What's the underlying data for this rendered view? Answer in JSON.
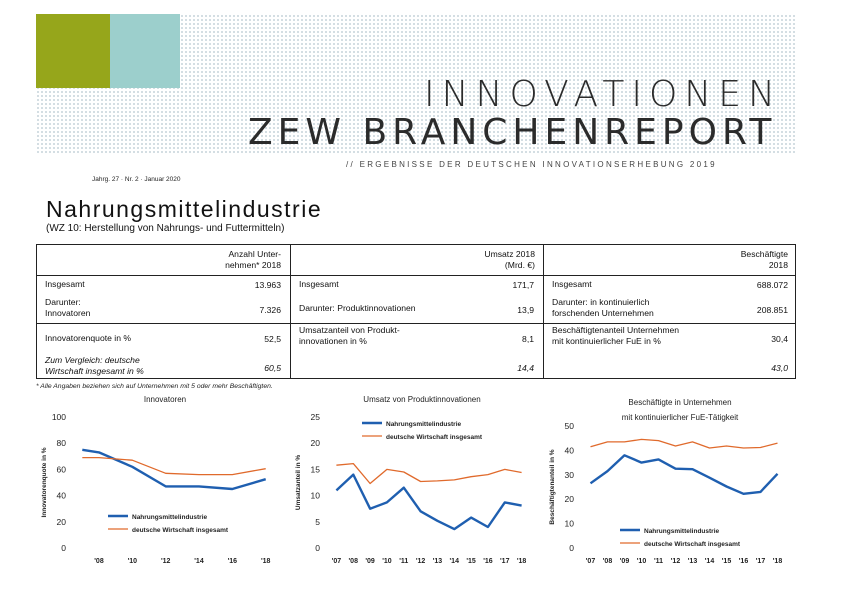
{
  "header": {
    "title_line1": "INNOVATIONEN",
    "title_line2": "ZEW BRANCHENREPORT",
    "subtitle": "// ERGEBNISSE DER DEUTSCHEN INNOVATIONSERHEBUNG 2019",
    "issue": "Jahrg. 27 · Nr. 2 · Januar 2020",
    "accent_colors": [
      "#96a61b",
      "#9ccfcc"
    ]
  },
  "section": {
    "title": "Nahrungsmittelindustrie",
    "subtitle": "(WZ 10: Herstellung von Nahrungs- und Futtermitteln)"
  },
  "table": {
    "headers": [
      "Anzahl Unter-\nnehmen* 2018",
      "Umsatz 2018\n(Mrd. €)",
      "Beschäftigte\n2018"
    ],
    "rows": [
      {
        "l1": "Insgesamt",
        "v1": "13.963",
        "l2": "Insgesamt",
        "v2": "171,7",
        "l3": "Insgesamt",
        "v3": "688.072"
      },
      {
        "l1": "Darunter:\nInnovatoren",
        "v1": "7.326",
        "l2": "Darunter: Produktinnovationen",
        "v2": "13,9",
        "l3": "Darunter: in kontinuierlich\nforschenden Unternehmen",
        "v3": "208.851"
      },
      {
        "l1": "Innovatorenquote in %",
        "v1": "52,5",
        "l2": "Umsatzanteil von Produkt-\ninnovationen in %",
        "v2": "8,1",
        "l3": "Beschäftigtenanteil Unternehmen\nmit kontinuierlicher FuE in %",
        "v3": "30,4"
      },
      {
        "l1": "Zum Vergleich: deutsche\nWirtschaft insgesamt in %",
        "v1": "60,5",
        "l2": "",
        "v2": "14,4",
        "l3": "",
        "v3": "43,0"
      }
    ]
  },
  "footnote": "* Alle Angaben beziehen sich auf Unternehmen mit 5 oder mehr Beschäftigten.",
  "colors": {
    "industry": "#1f5fb0",
    "economy": "#e06a2c"
  },
  "chart_data": [
    {
      "type": "line",
      "title": "Innovatoren",
      "ylabel": "Innovatorenquote in %",
      "ylim": [
        0,
        100
      ],
      "yticks": [
        0,
        20,
        40,
        60,
        80,
        100
      ],
      "x": [
        2007,
        2008,
        2010,
        2012,
        2014,
        2016,
        2018
      ],
      "xticks": [
        2008,
        2010,
        2012,
        2014,
        2016,
        2018
      ],
      "xtick_labels": [
        "'08",
        "'10",
        "'12",
        "'14",
        "'16",
        "'18"
      ],
      "legend_position": "bottom-left",
      "series": [
        {
          "name": "Nahrungsmittelindustrie",
          "color": "#1f5fb0",
          "width": 2.4,
          "values": [
            75,
            73,
            62,
            47,
            47,
            45,
            52.5
          ]
        },
        {
          "name": "deutsche Wirtschaft insgesamt",
          "color": "#e06a2c",
          "width": 1.3,
          "values": [
            69,
            69,
            67,
            57,
            56,
            56,
            60.5
          ]
        }
      ]
    },
    {
      "type": "line",
      "title": "Umsatz von Produktinnovationen",
      "ylabel": "Umsatzanteil in %",
      "ylim": [
        0,
        25
      ],
      "yticks": [
        0,
        5,
        10,
        15,
        20,
        25
      ],
      "x": [
        2007,
        2008,
        2009,
        2010,
        2011,
        2012,
        2013,
        2014,
        2015,
        2016,
        2017,
        2018
      ],
      "xticks": [
        2007,
        2008,
        2009,
        2010,
        2011,
        2012,
        2013,
        2014,
        2015,
        2016,
        2017,
        2018
      ],
      "xtick_labels": [
        "'07",
        "'08",
        "'09",
        "'10",
        "'11",
        "'12",
        "'13",
        "'14",
        "'15",
        "'16",
        "'17",
        "'18"
      ],
      "legend_position": "top-right",
      "series": [
        {
          "name": "Nahrungsmittelindustrie",
          "color": "#1f5fb0",
          "width": 2.4,
          "values": [
            11,
            14,
            7.5,
            8.7,
            11.5,
            7,
            5.2,
            3.6,
            5.8,
            4,
            8.7,
            8.1
          ]
        },
        {
          "name": "deutsche Wirtschaft insgesamt",
          "color": "#e06a2c",
          "width": 1.3,
          "values": [
            15.8,
            16.1,
            12.3,
            15,
            14.5,
            12.7,
            12.8,
            13,
            13.6,
            14,
            15,
            14.4
          ]
        }
      ]
    },
    {
      "type": "line",
      "title": "Beschäftigte in Unternehmen\nmit kontinuierlicher FuE-Tätigkeit",
      "ylabel": "Beschäftigtenanteil in %",
      "ylim": [
        0,
        50
      ],
      "yticks": [
        0,
        10,
        20,
        30,
        40,
        50
      ],
      "x": [
        2007,
        2008,
        2009,
        2010,
        2011,
        2012,
        2013,
        2014,
        2015,
        2016,
        2017,
        2018
      ],
      "xticks": [
        2007,
        2008,
        2009,
        2010,
        2011,
        2012,
        2013,
        2014,
        2015,
        2016,
        2017,
        2018
      ],
      "xtick_labels": [
        "'07",
        "'08",
        "'09",
        "'10",
        "'11",
        "'12",
        "'13",
        "'14",
        "'15",
        "'16",
        "'17",
        "'18"
      ],
      "legend_position": "bottom-right",
      "series": [
        {
          "name": "Nahrungsmittelindustrie",
          "color": "#1f5fb0",
          "width": 2.4,
          "values": [
            26.5,
            31.5,
            38,
            35,
            36.3,
            32.5,
            32.3,
            28.8,
            25.2,
            22.2,
            23,
            30.4
          ]
        },
        {
          "name": "deutsche Wirtschaft insgesamt",
          "color": "#e06a2c",
          "width": 1.3,
          "values": [
            41.5,
            43.5,
            43.5,
            44.5,
            44,
            41.8,
            43.5,
            41,
            41.8,
            41,
            41.2,
            43
          ]
        }
      ]
    }
  ]
}
